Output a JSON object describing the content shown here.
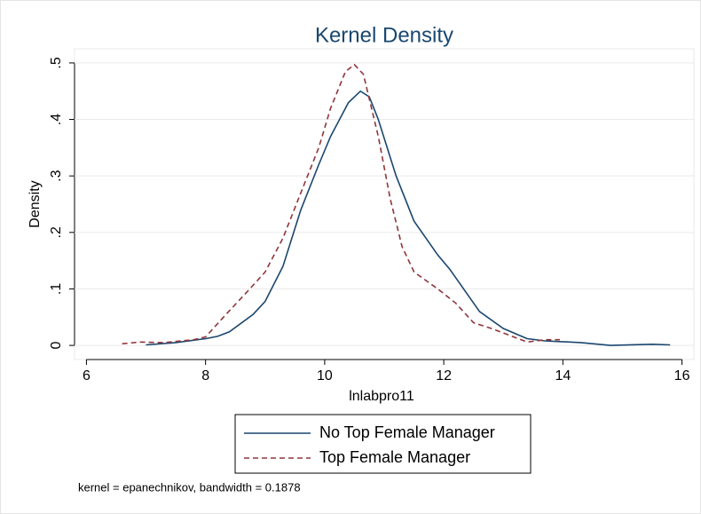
{
  "chart_data": {
    "type": "line",
    "title": "Kernel Density",
    "xlabel": "lnlabpro11",
    "ylabel": "Density",
    "note": "kernel = epanechnikov, bandwidth = 0.1878",
    "xlim": [
      5.8,
      16.2
    ],
    "xticks": [
      6,
      8,
      10,
      12,
      14,
      16
    ],
    "ylim": [
      -0.025,
      0.525
    ],
    "yticks": [
      0,
      {
        "value": 0.1,
        "label": ".1"
      },
      {
        "value": 0.2,
        "label": ".2"
      },
      {
        "value": 0.3,
        "label": ".3"
      },
      {
        "value": 0.4,
        "label": ".4"
      },
      {
        "value": 0.5,
        "label": ".5"
      }
    ],
    "grid": true,
    "series": [
      {
        "name": "No Top Female Manager",
        "color": "#1a476f",
        "dash": "solid",
        "x": [
          7.0,
          7.5,
          8.0,
          8.2,
          8.4,
          8.8,
          9.0,
          9.3,
          9.6,
          9.9,
          10.1,
          10.4,
          10.6,
          10.75,
          10.9,
          11.2,
          11.5,
          11.9,
          12.1,
          12.6,
          13.0,
          13.4,
          13.7,
          14.3,
          14.8,
          15.5,
          15.8
        ],
        "values": [
          0.001,
          0.005,
          0.012,
          0.016,
          0.024,
          0.055,
          0.078,
          0.14,
          0.24,
          0.32,
          0.37,
          0.43,
          0.45,
          0.44,
          0.4,
          0.3,
          0.22,
          0.16,
          0.135,
          0.06,
          0.03,
          0.012,
          0.008,
          0.005,
          0.0,
          0.002,
          0.001
        ]
      },
      {
        "name": "Top Female Manager",
        "color": "#90353b",
        "dash": "dashed",
        "x": [
          6.6,
          6.9,
          7.3,
          7.8,
          8.0,
          8.3,
          8.7,
          9.0,
          9.3,
          9.6,
          9.9,
          10.1,
          10.35,
          10.5,
          10.65,
          10.9,
          11.1,
          11.3,
          11.5,
          11.9,
          12.2,
          12.5,
          12.8,
          13.1,
          13.4,
          13.7,
          13.95
        ],
        "values": [
          0.003,
          0.006,
          0.005,
          0.01,
          0.015,
          0.05,
          0.095,
          0.13,
          0.19,
          0.27,
          0.35,
          0.42,
          0.485,
          0.497,
          0.48,
          0.37,
          0.26,
          0.175,
          0.13,
          0.1,
          0.075,
          0.04,
          0.03,
          0.018,
          0.006,
          0.01,
          0.01
        ]
      }
    ],
    "legend": "bottom"
  }
}
